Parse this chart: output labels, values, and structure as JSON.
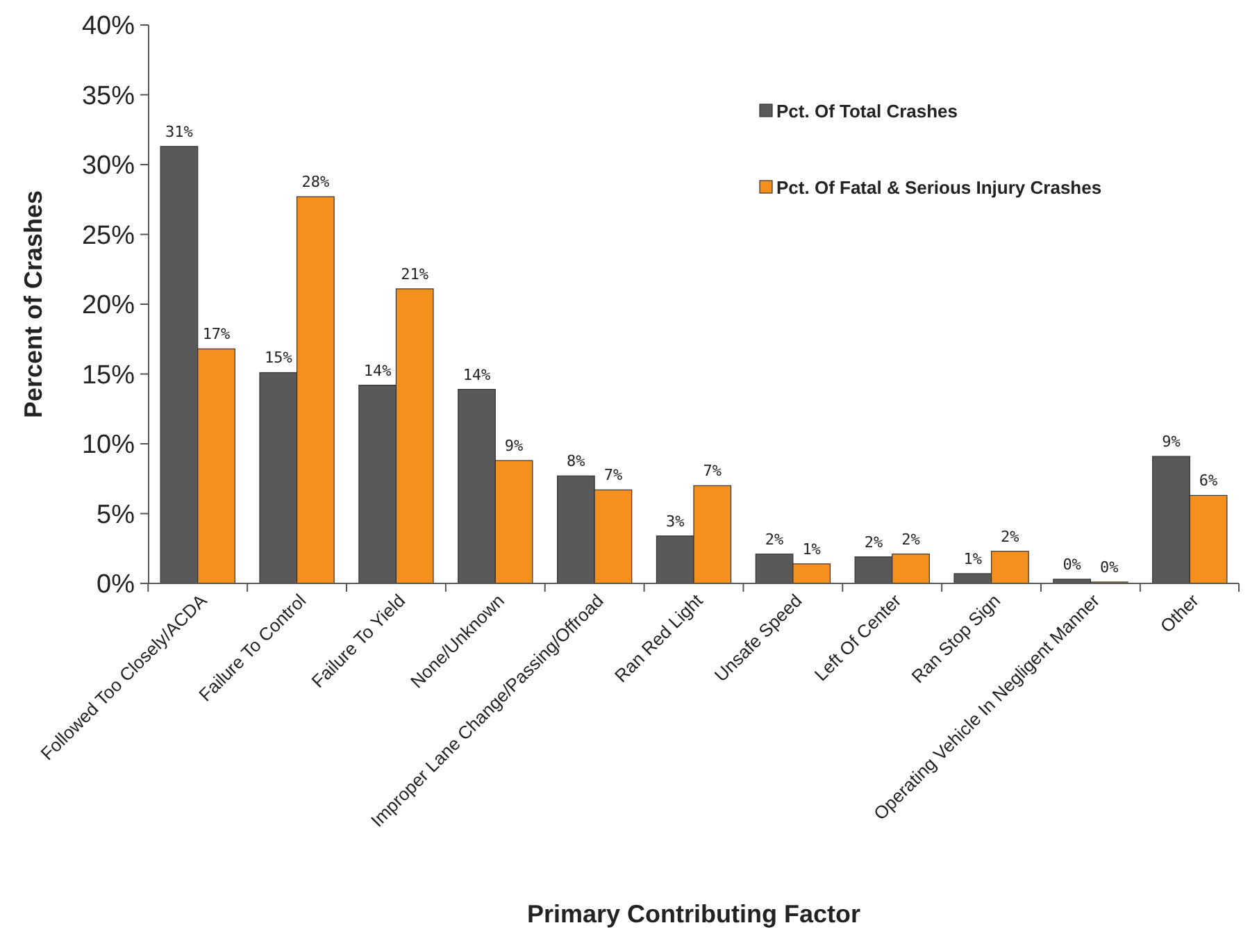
{
  "chart_data": {
    "type": "bar",
    "xlabel": "Primary Contributing Factor",
    "ylabel": "Percent of Crashes",
    "categories": [
      "Followed Too Closely/ACDA",
      "Failure To Control",
      "Failure To Yield",
      "None/Unknown",
      "Improper Lane Change/Passing/Offroad",
      "Ran Red Light",
      "Unsafe Speed",
      "Left Of Center",
      "Ran Stop Sign",
      "Operating Vehicle In Negligent Manner",
      "Other"
    ],
    "series": [
      {
        "name": "Pct. Of Total Crashes",
        "color": "#595959",
        "values": [
          31.3,
          15.1,
          14.2,
          13.9,
          7.7,
          3.4,
          2.1,
          1.9,
          0.7,
          0.3,
          9.1
        ],
        "value_labels": [
          "31%",
          "15%",
          "14%",
          "14%",
          "8%",
          "3%",
          "2%",
          "2%",
          "1%",
          "0%",
          "9%"
        ]
      },
      {
        "name": "Pct.  Of Fatal & Serious Injury Crashes",
        "color": "#f5901e",
        "values": [
          16.8,
          27.7,
          21.1,
          8.8,
          6.7,
          7.0,
          1.4,
          2.1,
          2.3,
          0.1,
          6.3
        ],
        "value_labels": [
          "17%",
          "28%",
          "21%",
          "9%",
          "7%",
          "7%",
          "1%",
          "2%",
          "2%",
          "0%",
          "6%"
        ]
      }
    ],
    "ylim": [
      0,
      40
    ],
    "yticks": [
      {
        "value": 0,
        "label": "0%"
      },
      {
        "value": 5,
        "label": "5%"
      },
      {
        "value": 10,
        "label": "10%"
      },
      {
        "value": 15,
        "label": "15%"
      },
      {
        "value": 20,
        "label": "20%"
      },
      {
        "value": 25,
        "label": "25%"
      },
      {
        "value": 30,
        "label": "30%"
      },
      {
        "value": 35,
        "label": "35%"
      },
      {
        "value": 40,
        "label": "40%"
      }
    ],
    "grid": false,
    "legend": "top right"
  }
}
